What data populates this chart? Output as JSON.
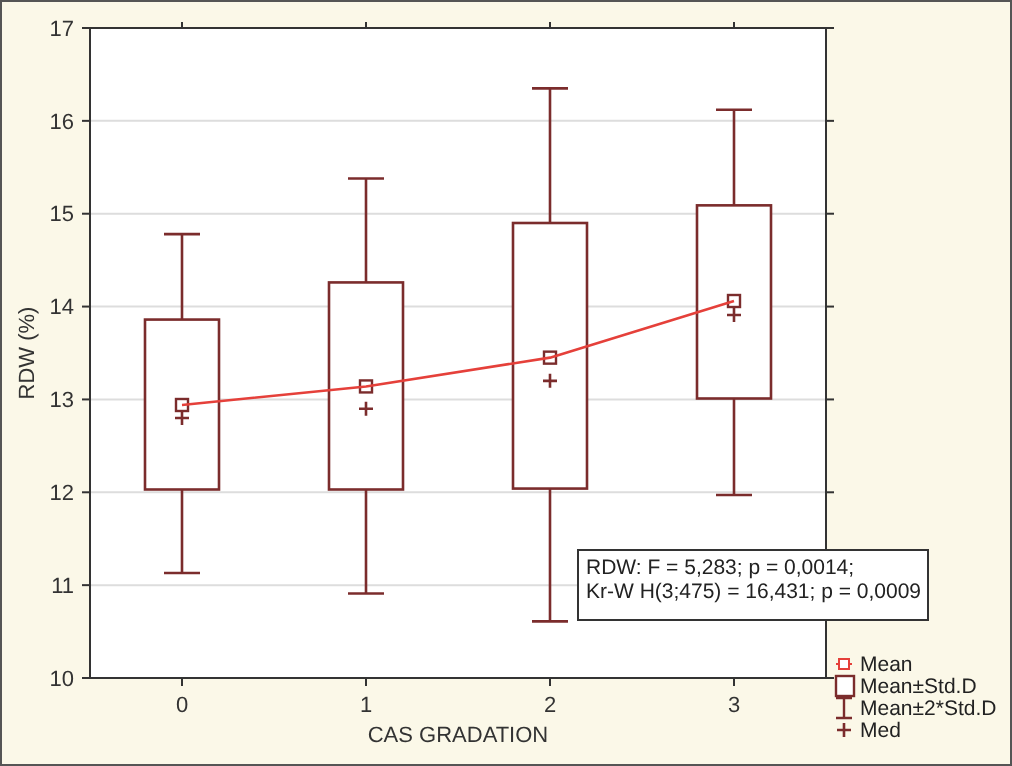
{
  "chart_data": {
    "type": "box",
    "xlabel": "CAS GRADATION",
    "ylabel": "RDW (%)",
    "categories": [
      "0",
      "1",
      "2",
      "3"
    ],
    "ylim": [
      10,
      17
    ],
    "yticks": [
      10,
      11,
      12,
      13,
      14,
      15,
      16,
      17
    ],
    "grid": "y",
    "legend": "bottom right",
    "annotations": [
      "RDW: F = 5,283; p = 0,0014;",
      "Kr-W H(3;475) = 16,431; p = 0,0009",
      "Mean±2*Std.D",
      "Med"
    ],
    "series": [
      {
        "type": "line",
        "name": "Mean",
        "color": "#e5403a",
        "values": [
          12.94,
          13.14,
          13.45,
          14.06
        ]
      },
      {
        "name": "Mean±Std.D",
        "color": "#7b2c2c",
        "boxes": [
          {
            "low": 11.13,
            "q1": 12.03,
            "median": 12.8,
            "q3": 13.86,
            "high": 14.78,
            "mean": 12.94
          },
          {
            "low": 10.91,
            "q1": 12.03,
            "median": 12.9,
            "q3": 14.26,
            "high": 15.38,
            "mean": 13.14
          },
          {
            "low": 10.61,
            "q1": 12.04,
            "median": 13.2,
            "q3": 14.9,
            "high": 16.35,
            "mean": 13.45
          },
          {
            "low": 11.97,
            "q1": 13.01,
            "median": 13.91,
            "q3": 15.09,
            "high": 16.12,
            "mean": 14.06
          }
        ]
      }
    ]
  }
}
